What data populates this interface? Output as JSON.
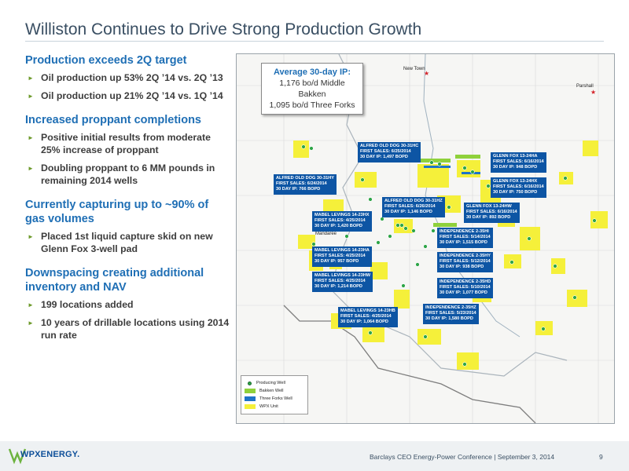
{
  "title": "Williston Continues to Drive Strong Production Growth",
  "sections": [
    {
      "heading": "Production exceeds 2Q target",
      "bullets": [
        "Oil production up 53% 2Q ’14 vs. 2Q ’13",
        "Oil production up 21% 2Q ’14 vs. 1Q ’14"
      ]
    },
    {
      "heading": "Increased proppant completions",
      "bullets": [
        "Positive initial results from moderate 25% increase of proppant",
        "Doubling proppant to 6 MM pounds in remaining 2014 wells"
      ]
    },
    {
      "heading": "Currently capturing up to ~90% of gas volumes",
      "bullets": [
        "Placed 1st liquid capture skid on new Glenn Fox 3-well pad"
      ]
    },
    {
      "heading": "Downspacing creating additional inventory and NAV",
      "bullets": [
        "199 locations added",
        "10 years of drillable locations using 2014 run rate"
      ]
    }
  ],
  "map": {
    "avg_box": {
      "head": "Average 30-day IP:",
      "line1": "1,176 bo/d Middle Bakken",
      "line2": "1,095 bo/d Three Forks"
    },
    "towns": {
      "new_town": "New Town",
      "parshall": "Parshall",
      "mandaree": "Mandaree"
    },
    "wells": [
      {
        "name": "ALFRED OLD DOG 30-31HC",
        "sales": "FIRST SALES: 6/25/2014",
        "ip": "30 DAY IP: 1,497 BOPD"
      },
      {
        "name": "ALFRED OLD DOG 30-31HY",
        "sales": "FIRST SALES: 6/24/2014",
        "ip": "30 DAY IP: 766 BOPD"
      },
      {
        "name": "ALFRED OLD DOG 30-31HZ",
        "sales": "FIRST SALES: 6/26/2014",
        "ip": "30 DAY IP: 1,146 BOPD"
      },
      {
        "name": "MABEL LEVINGS 14-23HX",
        "sales": "FIRST SALES: 4/25/2014",
        "ip": "30 DAY IP: 1,420 BOPD"
      },
      {
        "name": "MABEL LEVINGS 14-23HA",
        "sales": "FIRST SALES: 4/25/2014",
        "ip": "30 DAY IP: 957 BOPD"
      },
      {
        "name": "MABEL LEVINGS 14-23HW",
        "sales": "FIRST SALES: 4/25/2014",
        "ip": "30 DAY IP: 1,214 BOPD"
      },
      {
        "name": "MABEL LEVINGS 14-23HB",
        "sales": "FIRST SALES: 4/25/2014",
        "ip": "30 DAY IP: 1,064 BOPD"
      },
      {
        "name": "GLENN FOX 13-24HA",
        "sales": "FIRST SALES: 6/16/2014",
        "ip": "30 DAY IP: 948 BOPD"
      },
      {
        "name": "GLENN FOX 13-24HX",
        "sales": "FIRST SALES: 6/16/2014",
        "ip": "30 DAY IP: 750 BOPD"
      },
      {
        "name": "GLENN FOX 13-24HW",
        "sales": "FIRST SALES: 6/16/2014",
        "ip": "30 DAY IP: 892 BOPD"
      },
      {
        "name": "INDEPENDENCE 2-35HI",
        "sales": "FIRST SALES: 5/14/2014",
        "ip": "30 DAY IP: 1,515 BOPD"
      },
      {
        "name": "INDEPENDENCE 2-35HY",
        "sales": "FIRST SALES: 5/12/2014",
        "ip": "30 DAY IP: 938 BOPD"
      },
      {
        "name": "INDEPENDENCE 2-35HD",
        "sales": "FIRST SALES: 5/10/2014",
        "ip": "30 DAY IP: 1,077 BOPD"
      },
      {
        "name": "INDEPENDENCE 2-35HZ",
        "sales": "FIRST SALES: 5/23/2014",
        "ip": "30 DAY IP: 1,580 BOPD"
      }
    ],
    "legend": [
      {
        "label": "Producing Well",
        "color": "#2ea548"
      },
      {
        "label": "Bakken Well",
        "color": "#8fd13b"
      },
      {
        "label": "Three Forks Well",
        "color": "#1e73c8"
      },
      {
        "label": "WPX Unit",
        "color": "#f5f03a"
      }
    ]
  },
  "footer": {
    "logo": "WPXENERGY.",
    "conference": "Barclays CEO Energy-Power Conference | September 3, 2014",
    "page": "9"
  }
}
